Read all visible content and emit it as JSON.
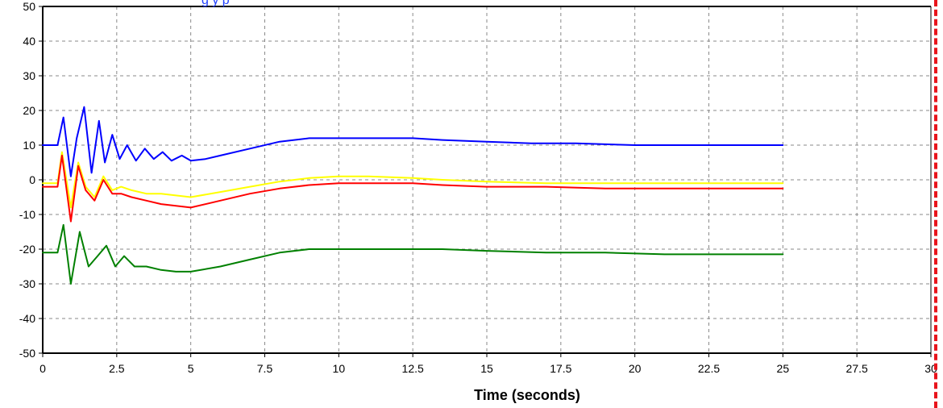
{
  "header": {
    "partial_text": "g        y p"
  },
  "colors": {
    "background": "#ffffff",
    "grid": "#8a8a8a",
    "axis": "#000000",
    "top_label": "#1f3fff",
    "panel_border": "#e8141c"
  },
  "chart_data": {
    "type": "line",
    "title": "",
    "xlabel": "Time (seconds)",
    "ylabel": "",
    "xlim": [
      0,
      30
    ],
    "ylim": [
      -50,
      50
    ],
    "grid": true,
    "legend": "none",
    "xticks": [
      "0",
      "2.5",
      "5",
      "7.5",
      "10",
      "12.5",
      "15",
      "17.5",
      "20",
      "22.5",
      "25",
      "27.5",
      "30"
    ],
    "yticks": [
      "50",
      "40",
      "30",
      "20",
      "10",
      "0",
      "-10",
      "-20",
      "-30",
      "-40",
      "-50"
    ],
    "series": [
      {
        "color": "#0000ff",
        "x": [
          0,
          0.5,
          0.7,
          0.95,
          1.15,
          1.4,
          1.65,
          1.9,
          2.1,
          2.35,
          2.6,
          2.85,
          3.15,
          3.45,
          3.75,
          4.05,
          4.35,
          4.7,
          5.0,
          5.5,
          6.0,
          7.0,
          8.0,
          9.0,
          10.0,
          11.0,
          12.5,
          13.5,
          15.0,
          16.5,
          18.0,
          20.0,
          22.0,
          25.0
        ],
        "y": [
          10,
          10,
          18,
          1,
          12,
          21,
          2,
          17,
          5,
          13,
          6,
          10,
          5.5,
          9,
          6,
          8,
          5.5,
          7,
          5.5,
          6,
          7,
          9,
          11,
          12,
          12,
          12,
          12,
          11.5,
          11,
          10.5,
          10.5,
          10,
          10,
          10
        ]
      },
      {
        "color": "#ffff00",
        "x": [
          0,
          0.5,
          0.65,
          0.95,
          1.2,
          1.45,
          1.75,
          2.05,
          2.35,
          2.65,
          3.0,
          3.5,
          4.0,
          5.0,
          6.0,
          7.0,
          8.0,
          9.0,
          10.0,
          11.0,
          12.5,
          13.5,
          15.0,
          17.0,
          19.0,
          21.0,
          25.0
        ],
        "y": [
          -1,
          -1,
          8,
          -8,
          5,
          -2,
          -5,
          1,
          -3,
          -2,
          -3,
          -4,
          -4,
          -5,
          -3.5,
          -2,
          -0.5,
          0.5,
          1,
          1,
          0.5,
          0,
          -0.5,
          -1,
          -1,
          -1,
          -1
        ]
      },
      {
        "color": "#ff0000",
        "x": [
          0,
          0.5,
          0.65,
          0.95,
          1.2,
          1.45,
          1.75,
          2.05,
          2.35,
          2.65,
          3.0,
          3.5,
          4.0,
          5.0,
          6.0,
          7.0,
          8.0,
          9.0,
          10.0,
          11.0,
          12.5,
          13.5,
          15.0,
          17.0,
          19.0,
          21.0,
          25.0
        ],
        "y": [
          -2,
          -2,
          7,
          -12,
          4,
          -3,
          -6,
          0,
          -4,
          -4,
          -5,
          -6,
          -7,
          -8,
          -6,
          -4,
          -2.5,
          -1.5,
          -1,
          -1,
          -1,
          -1.5,
          -2,
          -2,
          -2.5,
          -2.5,
          -2.5
        ]
      },
      {
        "color": "#008000",
        "x": [
          0,
          0.5,
          0.7,
          0.95,
          1.25,
          1.55,
          1.85,
          2.15,
          2.45,
          2.75,
          3.1,
          3.5,
          4.0,
          4.5,
          5.0,
          6.0,
          7.0,
          8.0,
          9.0,
          10.0,
          11.0,
          12.5,
          13.5,
          15.0,
          17.0,
          19.0,
          21.0,
          25.0
        ],
        "y": [
          -21,
          -21,
          -13,
          -30,
          -15,
          -25,
          -22,
          -19,
          -25,
          -22,
          -25,
          -25,
          -26,
          -26.5,
          -26.5,
          -25,
          -23,
          -21,
          -20,
          -20,
          -20,
          -20,
          -20,
          -20.5,
          -21,
          -21,
          -21.5,
          -21.5
        ]
      }
    ]
  }
}
